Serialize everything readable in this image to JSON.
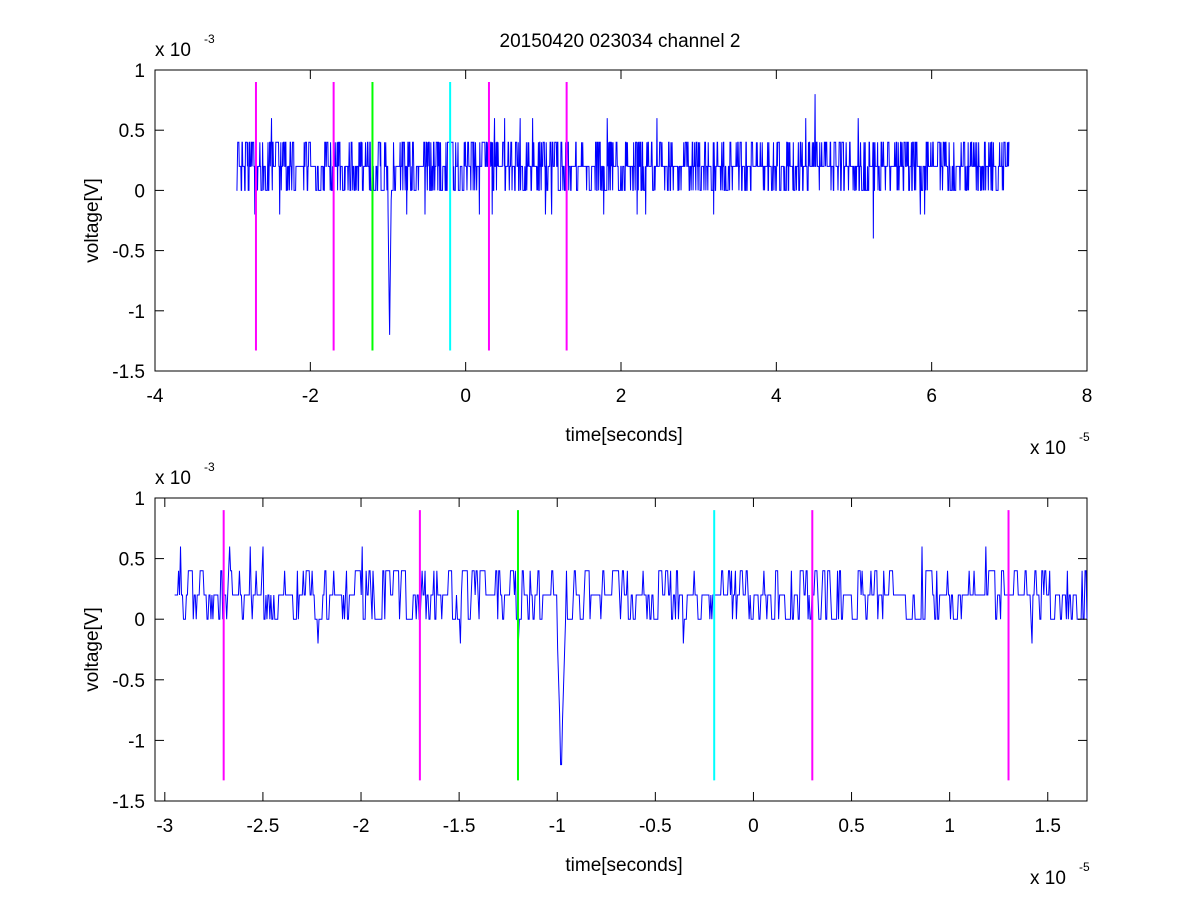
{
  "figure": {
    "title": "20150420 023034 channel 2"
  },
  "chart_data": [
    {
      "type": "line",
      "xlabel": "time[seconds]",
      "ylabel": "voltage[V]",
      "x_exponent_label": "x 10",
      "x_exponent": "-5",
      "y_exponent_label": "x 10",
      "y_exponent": "-3",
      "xlim": [
        -4e-05,
        8e-05
      ],
      "ylim": [
        -0.0015,
        0.001
      ],
      "xticks": [
        -4e-05,
        -2e-05,
        0,
        2e-05,
        4e-05,
        6e-05,
        8e-05
      ],
      "xtick_labels": [
        "-4",
        "-2",
        "0",
        "2",
        "4",
        "6",
        "8"
      ],
      "yticks": [
        -0.0015,
        -0.001,
        -0.0005,
        0,
        0.0005,
        0.001
      ],
      "ytick_labels": [
        "-1.5",
        "-1",
        "-0.5",
        "0",
        "0.5",
        "1"
      ],
      "grid": false,
      "signal": {
        "color": "#0000ff",
        "x_start": -2.95e-05,
        "x_end": 7e-05,
        "baseline": 0.0002,
        "levels": [
          0,
          0.0002,
          0.0004
        ],
        "spikes": [
          {
            "x": -2.5e-05,
            "y": 0.0006
          },
          {
            "x": -1.2e-05,
            "y": -0.0002
          },
          {
            "x": -9.8e-06,
            "y": -0.0012
          },
          {
            "x": 8.6e-06,
            "y": 0.0006
          },
          {
            "x": 4.5e-05,
            "y": 0.0008
          },
          {
            "x": 5.25e-05,
            "y": -0.0004
          }
        ]
      },
      "markers": [
        {
          "x": -2.7e-05,
          "color": "#ff00ff",
          "y_top": 0.0009,
          "y_bottom": -0.00133
        },
        {
          "x": -1.7e-05,
          "color": "#ff00ff",
          "y_top": 0.0009,
          "y_bottom": -0.00133
        },
        {
          "x": -1.2e-05,
          "color": "#00ff00",
          "y_top": 0.0009,
          "y_bottom": -0.00133
        },
        {
          "x": -2e-06,
          "color": "#00ffff",
          "y_top": 0.0009,
          "y_bottom": -0.00133
        },
        {
          "x": 3e-06,
          "color": "#ff00ff",
          "y_top": 0.0009,
          "y_bottom": -0.00133
        },
        {
          "x": 1.3e-05,
          "color": "#ff00ff",
          "y_top": 0.0009,
          "y_bottom": -0.00133
        }
      ]
    },
    {
      "type": "line",
      "xlabel": "time[seconds]",
      "ylabel": "voltage[V]",
      "x_exponent_label": "x 10",
      "x_exponent": "-5",
      "y_exponent_label": "x 10",
      "y_exponent": "-3",
      "xlim": [
        -3.05e-05,
        1.7e-05
      ],
      "ylim": [
        -0.0015,
        0.001
      ],
      "xticks": [
        -3e-05,
        -2.5e-05,
        -2e-05,
        -1.5e-05,
        -1e-05,
        -5e-06,
        0,
        5e-06,
        1e-05,
        1.5e-05
      ],
      "xtick_labels": [
        "-3",
        "-2.5",
        "-2",
        "-1.5",
        "-1",
        "-0.5",
        "0",
        "0.5",
        "1",
        "1.5"
      ],
      "yticks": [
        -0.0015,
        -0.001,
        -0.0005,
        0,
        0.0005,
        0.001
      ],
      "ytick_labels": [
        "-1.5",
        "-1",
        "-0.5",
        "0",
        "0.5",
        "1"
      ],
      "grid": false,
      "signal": {
        "color": "#0000ff",
        "x_start": -2.95e-05,
        "x_end": 1.7e-05,
        "baseline": 0.0002,
        "levels": [
          0,
          0.0002,
          0.0004
        ],
        "spikes": [
          {
            "x": -2.5e-05,
            "y": 0.0006
          },
          {
            "x": -1.2e-05,
            "y": -0.0002
          },
          {
            "x": -9.8e-06,
            "y": -0.0012
          },
          {
            "x": 8.6e-06,
            "y": 0.0006
          },
          {
            "x": 1.42e-05,
            "y": -0.0002
          }
        ]
      },
      "markers": [
        {
          "x": -2.7e-05,
          "color": "#ff00ff",
          "y_top": 0.0009,
          "y_bottom": -0.00133
        },
        {
          "x": -1.7e-05,
          "color": "#ff00ff",
          "y_top": 0.0009,
          "y_bottom": -0.00133
        },
        {
          "x": -1.2e-05,
          "color": "#00ff00",
          "y_top": 0.0009,
          "y_bottom": -0.00133
        },
        {
          "x": -2e-06,
          "color": "#00ffff",
          "y_top": 0.0009,
          "y_bottom": -0.00133
        },
        {
          "x": 3e-06,
          "color": "#ff00ff",
          "y_top": 0.0009,
          "y_bottom": -0.00133
        },
        {
          "x": 1.3e-05,
          "color": "#ff00ff",
          "y_top": 0.0009,
          "y_bottom": -0.00133
        }
      ]
    }
  ]
}
